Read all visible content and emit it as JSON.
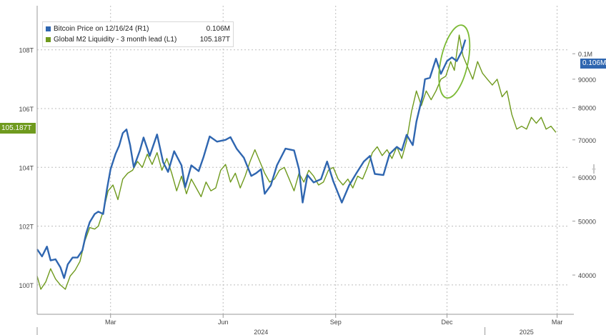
{
  "colors": {
    "bitcoin": "#2f66b0",
    "m2": "#6f9a1e",
    "highlight_ring": "#7cba35",
    "grid": "#bdbdbd",
    "axis_text": "#444444"
  },
  "legend": [
    {
      "name": "Bitcoin Price on 12/16/24 (R1)",
      "value": "0.106M",
      "color": "#2f66b0"
    },
    {
      "name": "Global M2 Liquidity - 3 month lead (L1)",
      "value": "105.187T",
      "color": "#6f9a1e"
    }
  ],
  "tags": {
    "left_last_value": "105.187T",
    "right_last_value": "0.106M"
  },
  "watermark_icon": "bloomberg-logo",
  "chart_data": {
    "type": "line",
    "x_axis": {
      "ticks": [
        "Mar",
        "Jun",
        "Sep",
        "Dec",
        "Mar"
      ],
      "tick_dates": [
        "2024-03-01",
        "2024-06-01",
        "2024-09-01",
        "2024-12-01",
        "2025-03-01"
      ],
      "years": [
        "2024",
        "2025"
      ],
      "range": [
        "2024-01-01",
        "2025-03-10"
      ]
    },
    "left_axis": {
      "ticks": [
        "100T",
        "102T",
        "104T",
        "106T",
        "108T"
      ],
      "tick_values": [
        100,
        102,
        104,
        106,
        108
      ],
      "ylim": [
        99,
        109.5
      ]
    },
    "right_axis": {
      "scale": "log",
      "ticks": [
        "40000",
        "50000",
        "60000",
        "70000",
        "80000",
        "90000",
        "0.1M"
      ],
      "tick_values": [
        40000,
        50000,
        60000,
        70000,
        80000,
        90000,
        100000
      ],
      "ylim": [
        34000,
        122000
      ]
    },
    "grid": true,
    "legend_position": "top-left",
    "series": [
      {
        "name": "Bitcoin Price on 12/16/24 (R1)",
        "axis": "right",
        "color": "#2f66b0",
        "points": [
          [
            "2024-01-01",
            44500
          ],
          [
            "2024-01-05",
            43200
          ],
          [
            "2024-01-09",
            45000
          ],
          [
            "2024-01-12",
            42500
          ],
          [
            "2024-01-16",
            42700
          ],
          [
            "2024-01-20",
            41300
          ],
          [
            "2024-01-23",
            39500
          ],
          [
            "2024-01-26",
            41800
          ],
          [
            "2024-01-30",
            43000
          ],
          [
            "2024-02-03",
            43000
          ],
          [
            "2024-02-07",
            44300
          ],
          [
            "2024-02-10",
            47500
          ],
          [
            "2024-02-13",
            49800
          ],
          [
            "2024-02-17",
            51500
          ],
          [
            "2024-02-20",
            52000
          ],
          [
            "2024-02-24",
            51500
          ],
          [
            "2024-02-27",
            57000
          ],
          [
            "2024-03-01",
            62000
          ],
          [
            "2024-03-05",
            66000
          ],
          [
            "2024-03-08",
            68300
          ],
          [
            "2024-03-11",
            72000
          ],
          [
            "2024-03-14",
            73100
          ],
          [
            "2024-03-17",
            68500
          ],
          [
            "2024-03-20",
            62500
          ],
          [
            "2024-03-25",
            67000
          ],
          [
            "2024-03-28",
            70700
          ],
          [
            "2024-04-02",
            65500
          ],
          [
            "2024-04-08",
            71600
          ],
          [
            "2024-04-13",
            63800
          ],
          [
            "2024-04-17",
            61300
          ],
          [
            "2024-04-22",
            66800
          ],
          [
            "2024-04-28",
            63000
          ],
          [
            "2024-05-01",
            57500
          ],
          [
            "2024-05-06",
            63000
          ],
          [
            "2024-05-12",
            61500
          ],
          [
            "2024-05-16",
            65200
          ],
          [
            "2024-05-21",
            71000
          ],
          [
            "2024-05-27",
            69500
          ],
          [
            "2024-06-03",
            70000
          ],
          [
            "2024-06-07",
            70800
          ],
          [
            "2024-06-12",
            67500
          ],
          [
            "2024-06-18",
            65000
          ],
          [
            "2024-06-24",
            60300
          ],
          [
            "2024-06-28",
            61000
          ],
          [
            "2024-07-02",
            62000
          ],
          [
            "2024-07-05",
            56000
          ],
          [
            "2024-07-10",
            58000
          ],
          [
            "2024-07-15",
            63000
          ],
          [
            "2024-07-22",
            67500
          ],
          [
            "2024-07-29",
            67000
          ],
          [
            "2024-08-02",
            62000
          ],
          [
            "2024-08-05",
            54000
          ],
          [
            "2024-08-09",
            60500
          ],
          [
            "2024-08-14",
            58700
          ],
          [
            "2024-08-20",
            59500
          ],
          [
            "2024-08-25",
            64000
          ],
          [
            "2024-08-30",
            59000
          ],
          [
            "2024-09-06",
            54000
          ],
          [
            "2024-09-12",
            58000
          ],
          [
            "2024-09-18",
            61000
          ],
          [
            "2024-09-24",
            64000
          ],
          [
            "2024-09-29",
            65500
          ],
          [
            "2024-10-03",
            60800
          ],
          [
            "2024-10-10",
            60500
          ],
          [
            "2024-10-15",
            66000
          ],
          [
            "2024-10-21",
            68000
          ],
          [
            "2024-10-25",
            67000
          ],
          [
            "2024-10-29",
            71500
          ],
          [
            "2024-11-03",
            68500
          ],
          [
            "2024-11-06",
            75500
          ],
          [
            "2024-11-11",
            84000
          ],
          [
            "2024-11-13",
            90000
          ],
          [
            "2024-11-17",
            90500
          ],
          [
            "2024-11-22",
            98000
          ],
          [
            "2024-11-26",
            92000
          ],
          [
            "2024-12-01",
            97000
          ],
          [
            "2024-12-05",
            98500
          ],
          [
            "2024-12-09",
            97000
          ],
          [
            "2024-12-13",
            101000
          ],
          [
            "2024-12-16",
            106000
          ]
        ]
      },
      {
        "name": "Global M2 Liquidity - 3 month lead (L1)",
        "axis": "left",
        "color": "#6f9a1e",
        "points": [
          [
            "2024-01-01",
            100.3
          ],
          [
            "2024-01-04",
            99.85
          ],
          [
            "2024-01-08",
            100.1
          ],
          [
            "2024-01-12",
            100.55
          ],
          [
            "2024-01-16",
            100.2
          ],
          [
            "2024-01-20",
            100.0
          ],
          [
            "2024-01-24",
            99.85
          ],
          [
            "2024-01-28",
            100.3
          ],
          [
            "2024-02-01",
            100.5
          ],
          [
            "2024-02-05",
            100.8
          ],
          [
            "2024-02-09",
            101.5
          ],
          [
            "2024-02-13",
            101.95
          ],
          [
            "2024-02-17",
            101.9
          ],
          [
            "2024-02-20",
            102.0
          ],
          [
            "2024-02-24",
            102.5
          ],
          [
            "2024-02-28",
            103.2
          ],
          [
            "2024-03-03",
            103.4
          ],
          [
            "2024-03-07",
            102.9
          ],
          [
            "2024-03-11",
            103.6
          ],
          [
            "2024-03-15",
            103.8
          ],
          [
            "2024-03-19",
            103.9
          ],
          [
            "2024-03-23",
            104.2
          ],
          [
            "2024-03-27",
            104.0
          ],
          [
            "2024-03-31",
            104.45
          ],
          [
            "2024-04-04",
            104.1
          ],
          [
            "2024-04-08",
            104.5
          ],
          [
            "2024-04-12",
            103.9
          ],
          [
            "2024-04-16",
            104.3
          ],
          [
            "2024-04-20",
            103.8
          ],
          [
            "2024-04-24",
            103.2
          ],
          [
            "2024-04-28",
            103.7
          ],
          [
            "2024-05-02",
            103.1
          ],
          [
            "2024-05-06",
            103.6
          ],
          [
            "2024-05-10",
            103.3
          ],
          [
            "2024-05-14",
            103.0
          ],
          [
            "2024-05-18",
            103.5
          ],
          [
            "2024-05-22",
            103.2
          ],
          [
            "2024-05-26",
            103.3
          ],
          [
            "2024-05-30",
            103.9
          ],
          [
            "2024-06-03",
            104.1
          ],
          [
            "2024-06-07",
            103.5
          ],
          [
            "2024-06-11",
            103.8
          ],
          [
            "2024-06-15",
            103.3
          ],
          [
            "2024-06-19",
            103.7
          ],
          [
            "2024-06-23",
            104.2
          ],
          [
            "2024-06-27",
            104.6
          ],
          [
            "2024-07-01",
            104.2
          ],
          [
            "2024-07-05",
            103.8
          ],
          [
            "2024-07-09",
            103.5
          ],
          [
            "2024-07-13",
            103.6
          ],
          [
            "2024-07-17",
            103.9
          ],
          [
            "2024-07-21",
            104.0
          ],
          [
            "2024-07-25",
            103.6
          ],
          [
            "2024-07-29",
            103.2
          ],
          [
            "2024-08-02",
            103.8
          ],
          [
            "2024-08-06",
            103.5
          ],
          [
            "2024-08-10",
            103.9
          ],
          [
            "2024-08-14",
            103.7
          ],
          [
            "2024-08-18",
            103.4
          ],
          [
            "2024-08-22",
            103.5
          ],
          [
            "2024-08-26",
            103.9
          ],
          [
            "2024-08-30",
            104.0
          ],
          [
            "2024-09-03",
            103.6
          ],
          [
            "2024-09-07",
            103.4
          ],
          [
            "2024-09-11",
            103.6
          ],
          [
            "2024-09-15",
            103.3
          ],
          [
            "2024-09-19",
            103.7
          ],
          [
            "2024-09-23",
            103.6
          ],
          [
            "2024-09-27",
            104.0
          ],
          [
            "2024-10-01",
            104.5
          ],
          [
            "2024-10-05",
            104.7
          ],
          [
            "2024-10-09",
            104.4
          ],
          [
            "2024-10-13",
            104.6
          ],
          [
            "2024-10-17",
            104.3
          ],
          [
            "2024-10-21",
            104.7
          ],
          [
            "2024-10-25",
            104.3
          ],
          [
            "2024-10-29",
            104.9
          ],
          [
            "2024-11-02",
            105.9
          ],
          [
            "2024-11-06",
            106.6
          ],
          [
            "2024-11-10",
            106.1
          ],
          [
            "2024-11-14",
            106.6
          ],
          [
            "2024-11-18",
            106.3
          ],
          [
            "2024-11-22",
            106.6
          ],
          [
            "2024-11-26",
            107.0
          ],
          [
            "2024-11-30",
            107.1
          ],
          [
            "2024-12-04",
            107.6
          ],
          [
            "2024-12-07",
            107.3
          ],
          [
            "2024-12-11",
            108.5
          ],
          [
            "2024-12-14",
            107.8
          ],
          [
            "2024-12-18",
            107.4
          ],
          [
            "2024-12-22",
            107.0
          ],
          [
            "2024-12-26",
            107.6
          ],
          [
            "2024-12-30",
            107.2
          ],
          [
            "2025-01-03",
            107.0
          ],
          [
            "2025-01-07",
            106.8
          ],
          [
            "2025-01-11",
            107.0
          ],
          [
            "2025-01-15",
            106.4
          ],
          [
            "2025-01-19",
            106.6
          ],
          [
            "2025-01-23",
            105.8
          ],
          [
            "2025-01-27",
            105.3
          ],
          [
            "2025-01-31",
            105.4
          ],
          [
            "2025-02-04",
            105.3
          ],
          [
            "2025-02-08",
            105.7
          ],
          [
            "2025-02-12",
            105.5
          ],
          [
            "2025-02-16",
            105.7
          ],
          [
            "2025-02-20",
            105.3
          ],
          [
            "2025-02-24",
            105.4
          ],
          [
            "2025-02-28",
            105.19
          ]
        ]
      }
    ],
    "annotations": [
      {
        "type": "ellipse",
        "series": "Global M2 Liquidity - 3 month lead (L1)",
        "around_date": "2024-12-07",
        "around_value": 107.6
      }
    ]
  }
}
